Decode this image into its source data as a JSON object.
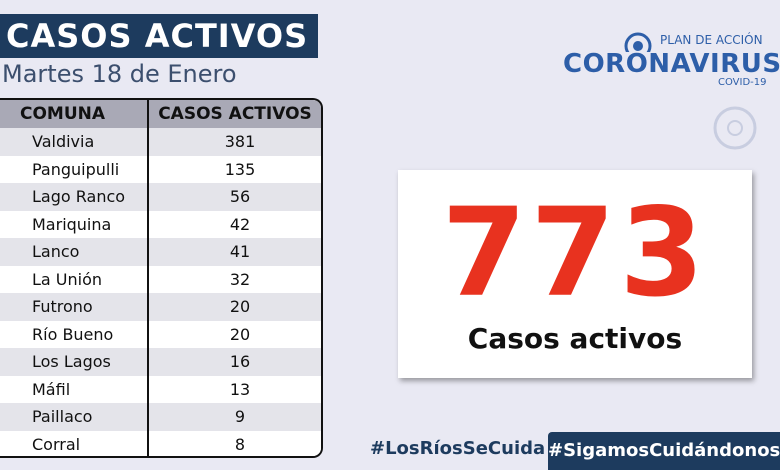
{
  "header": {
    "title": "CASOS ACTIVOS",
    "date": "Martes 18 de Enero"
  },
  "logo": {
    "plan": "PLAN DE ACCIÓN",
    "title": "CORONAVIRUS",
    "subtitle": "COVID-19"
  },
  "table": {
    "columns": [
      "COMUNA",
      "CASOS ACTIVOS"
    ],
    "rows": [
      [
        "Valdivia",
        381
      ],
      [
        "Panguipulli",
        135
      ],
      [
        "Lago Ranco",
        56
      ],
      [
        "Mariquina",
        42
      ],
      [
        "Lanco",
        41
      ],
      [
        "La Unión",
        32
      ],
      [
        "Futrono",
        20
      ],
      [
        "Río Bueno",
        20
      ],
      [
        "Los Lagos",
        16
      ],
      [
        "Máfil",
        13
      ],
      [
        "Paillaco",
        9
      ],
      [
        "Corral",
        8
      ]
    ]
  },
  "summary": {
    "total": 773,
    "label": "Casos activos"
  },
  "footer": {
    "hashtags": [
      "#LosRíosSeCuida",
      "#SigamosCuidándonos"
    ]
  }
}
